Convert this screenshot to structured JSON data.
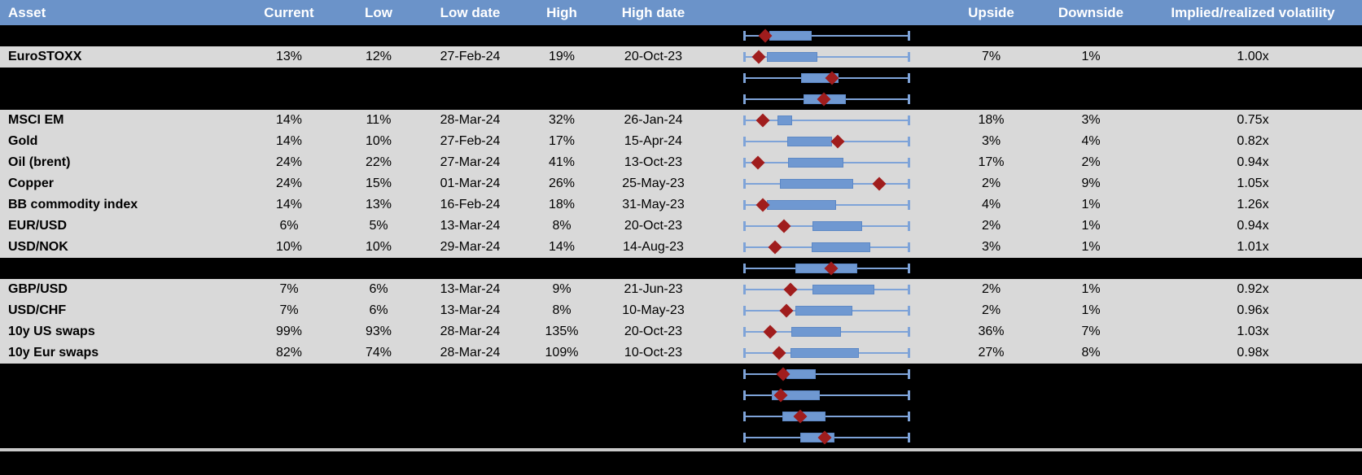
{
  "colors": {
    "header_bg": "#6b93c9",
    "header_text": "#ffffff",
    "data_row_bg": "#d9d9d9",
    "redacted_row_bg": "#000000",
    "whisker_blue": "#7ea3d8",
    "box_fill_blue": "#6f98d1",
    "box_border_blue": "#5d88c5",
    "marker_red": "#a01d1d",
    "bottom_separator": "#c9c9c9",
    "body_text": "#000000"
  },
  "chart_data": {
    "type": "table",
    "columns": [
      "Asset",
      "Current",
      "Low",
      "Low date",
      "High",
      "High date",
      "",
      "Upside",
      "Downside",
      "Implied/realized volatility"
    ],
    "plot_column": {
      "type": "box-whisker-range",
      "axis_range": [
        0,
        1
      ],
      "whiskers": "full low-high range (caps at both ends)",
      "marker": "red diamond = current value, positions normalized within each row's range"
    },
    "rows": [
      {
        "hidden": true,
        "plot": {
          "box_lo": 0.156,
          "box_hi": 0.409,
          "marker": 0.132
        }
      },
      {
        "hidden": false,
        "asset": "EuroSTOXX",
        "current": "13%",
        "low": "12%",
        "low_date": "27-Feb-24",
        "high": "19%",
        "high_date": "20-Oct-23",
        "upside": "7%",
        "downside": "1%",
        "impl_real": "1.00x",
        "plot": {
          "box_lo": 0.14,
          "box_hi": 0.446,
          "marker": 0.094
        }
      },
      {
        "hidden": true,
        "plot": {
          "box_lo": 0.347,
          "box_hi": 0.572,
          "marker": 0.534
        }
      },
      {
        "hidden": true,
        "plot": {
          "box_lo": 0.36,
          "box_hi": 0.617,
          "marker": 0.482
        }
      },
      {
        "hidden": false,
        "asset": "MSCI EM",
        "current": "14%",
        "low": "11%",
        "low_date": "28-Mar-24",
        "high": "32%",
        "high_date": "26-Jan-24",
        "upside": "18%",
        "downside": "3%",
        "impl_real": "0.75x",
        "plot": {
          "box_lo": 0.205,
          "box_hi": 0.292,
          "marker": 0.116
        }
      },
      {
        "hidden": false,
        "asset": "Gold",
        "current": "14%",
        "low": "10%",
        "low_date": "27-Feb-24",
        "high": "17%",
        "high_date": "15-Apr-24",
        "upside": "3%",
        "downside": "4%",
        "impl_real": "0.82x",
        "plot": {
          "box_lo": 0.262,
          "box_hi": 0.534,
          "marker": 0.568
        }
      },
      {
        "hidden": false,
        "asset": "Oil (brent)",
        "current": "24%",
        "low": "22%",
        "low_date": "27-Mar-24",
        "high": "41%",
        "high_date": "13-Oct-23",
        "upside": "17%",
        "downside": "2%",
        "impl_real": "0.94x",
        "plot": {
          "box_lo": 0.267,
          "box_hi": 0.601,
          "marker": 0.088
        }
      },
      {
        "hidden": false,
        "asset": "Copper",
        "current": "24%",
        "low": "15%",
        "low_date": "01-Mar-24",
        "high": "26%",
        "high_date": "25-May-23",
        "upside": "2%",
        "downside": "9%",
        "impl_real": "1.05x",
        "plot": {
          "box_lo": 0.221,
          "box_hi": 0.661,
          "marker": 0.816
        }
      },
      {
        "hidden": false,
        "asset": "BB commodity index",
        "current": "14%",
        "low": "13%",
        "low_date": "16-Feb-24",
        "high": "18%",
        "high_date": "31-May-23",
        "upside": "4%",
        "downside": "1%",
        "impl_real": "1.26x",
        "plot": {
          "box_lo": 0.14,
          "box_hi": 0.558,
          "marker": 0.116
        }
      },
      {
        "hidden": false,
        "asset": "EUR/USD",
        "current": "6%",
        "low": "5%",
        "low_date": "13-Mar-24",
        "high": "8%",
        "high_date": "20-Oct-23",
        "upside": "2%",
        "downside": "1%",
        "impl_real": "0.94x",
        "plot": {
          "box_lo": 0.417,
          "box_hi": 0.71,
          "marker": 0.243
        }
      },
      {
        "hidden": false,
        "asset": "USD/NOK",
        "current": "10%",
        "low": "10%",
        "low_date": "29-Mar-24",
        "high": "14%",
        "high_date": "14-Aug-23",
        "upside": "3%",
        "downside": "1%",
        "impl_real": "1.01x",
        "plot": {
          "box_lo": 0.409,
          "box_hi": 0.759,
          "marker": 0.189
        }
      },
      {
        "hidden": true,
        "plot": {
          "box_lo": 0.311,
          "box_hi": 0.685,
          "marker": 0.526
        }
      },
      {
        "hidden": false,
        "asset": "GBP/USD",
        "current": "7%",
        "low": "6%",
        "low_date": "13-Mar-24",
        "high": "9%",
        "high_date": "21-Jun-23",
        "upside": "2%",
        "downside": "1%",
        "impl_real": "0.92x",
        "plot": {
          "box_lo": 0.414,
          "box_hi": 0.783,
          "marker": 0.282
        }
      },
      {
        "hidden": false,
        "asset": "USD/CHF",
        "current": "7%",
        "low": "6%",
        "low_date": "13-Mar-24",
        "high": "8%",
        "high_date": "10-May-23",
        "upside": "2%",
        "downside": "1%",
        "impl_real": "0.96x",
        "plot": {
          "box_lo": 0.311,
          "box_hi": 0.653,
          "marker": 0.257
        }
      },
      {
        "hidden": false,
        "asset": "10y US swaps",
        "current": "99%",
        "low": "93%",
        "low_date": "28-Mar-24",
        "high": "135%",
        "high_date": "20-Oct-23",
        "upside": "36%",
        "downside": "7%",
        "impl_real": "1.03x",
        "plot": {
          "box_lo": 0.287,
          "box_hi": 0.585,
          "marker": 0.161
        }
      },
      {
        "hidden": false,
        "asset": "10y Eur swaps",
        "current": "82%",
        "low": "74%",
        "low_date": "28-Mar-24",
        "high": "109%",
        "high_date": "10-Oct-23",
        "upside": "27%",
        "downside": "8%",
        "impl_real": "0.98x",
        "plot": {
          "box_lo": 0.282,
          "box_hi": 0.694,
          "marker": 0.217
        }
      },
      {
        "hidden": true,
        "plot": {
          "box_lo": 0.259,
          "box_hi": 0.433,
          "marker": 0.241
        }
      },
      {
        "hidden": true,
        "plot": {
          "box_lo": 0.172,
          "box_hi": 0.461,
          "marker": 0.226
        }
      },
      {
        "hidden": true,
        "plot": {
          "box_lo": 0.235,
          "box_hi": 0.495,
          "marker": 0.343
        }
      },
      {
        "hidden": true,
        "plot": {
          "box_lo": 0.34,
          "box_hi": 0.547,
          "marker": 0.487
        }
      }
    ]
  }
}
